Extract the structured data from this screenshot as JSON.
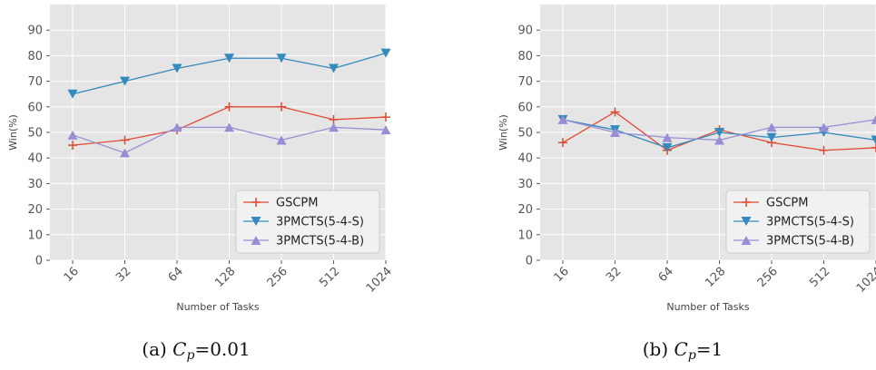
{
  "figure": {
    "captions": [
      {
        "prefix": "(a) ",
        "symbol": "C",
        "sub": "p",
        "suffix": "=0.01"
      },
      {
        "prefix": "(b) ",
        "symbol": "C",
        "sub": "p",
        "suffix": "=1"
      }
    ]
  },
  "chart_data": [
    {
      "type": "line",
      "xlabel": "Number of Tasks",
      "ylabel": "Win(%)",
      "categories": [
        "16",
        "32",
        "64",
        "128",
        "256",
        "512",
        "1024"
      ],
      "ylim": [
        0,
        100
      ],
      "yticks": [
        0,
        10,
        20,
        30,
        40,
        50,
        60,
        70,
        80,
        90
      ],
      "grid": true,
      "legend_position": "lower-right",
      "series": [
        {
          "name": "GSCPM",
          "color": "#e24a33",
          "marker": "plus",
          "values": [
            45,
            47,
            51,
            60,
            60,
            55,
            56
          ]
        },
        {
          "name": "3PMCTS(5-4-S)",
          "color": "#348abd",
          "marker": "triangle-down",
          "values": [
            65,
            70,
            75,
            79,
            79,
            75,
            81
          ]
        },
        {
          "name": "3PMCTS(5-4-B)",
          "color": "#988ed5",
          "marker": "triangle-up",
          "values": [
            49,
            42,
            52,
            52,
            47,
            52,
            51
          ]
        }
      ]
    },
    {
      "type": "line",
      "xlabel": "Number of Tasks",
      "ylabel": "Win(%)",
      "categories": [
        "16",
        "32",
        "64",
        "128",
        "256",
        "512",
        "1024"
      ],
      "ylim": [
        0,
        100
      ],
      "yticks": [
        0,
        10,
        20,
        30,
        40,
        50,
        60,
        70,
        80,
        90
      ],
      "grid": true,
      "legend_position": "lower-right",
      "series": [
        {
          "name": "GSCPM",
          "color": "#e24a33",
          "marker": "plus",
          "values": [
            46,
            58,
            43,
            51,
            46,
            43,
            44
          ]
        },
        {
          "name": "3PMCTS(5-4-S)",
          "color": "#348abd",
          "marker": "triangle-down",
          "values": [
            55,
            51,
            44,
            50,
            48,
            50,
            47
          ]
        },
        {
          "name": "3PMCTS(5-4-B)",
          "color": "#988ed5",
          "marker": "triangle-up",
          "values": [
            55,
            50,
            48,
            47,
            52,
            52,
            55
          ]
        }
      ]
    }
  ]
}
